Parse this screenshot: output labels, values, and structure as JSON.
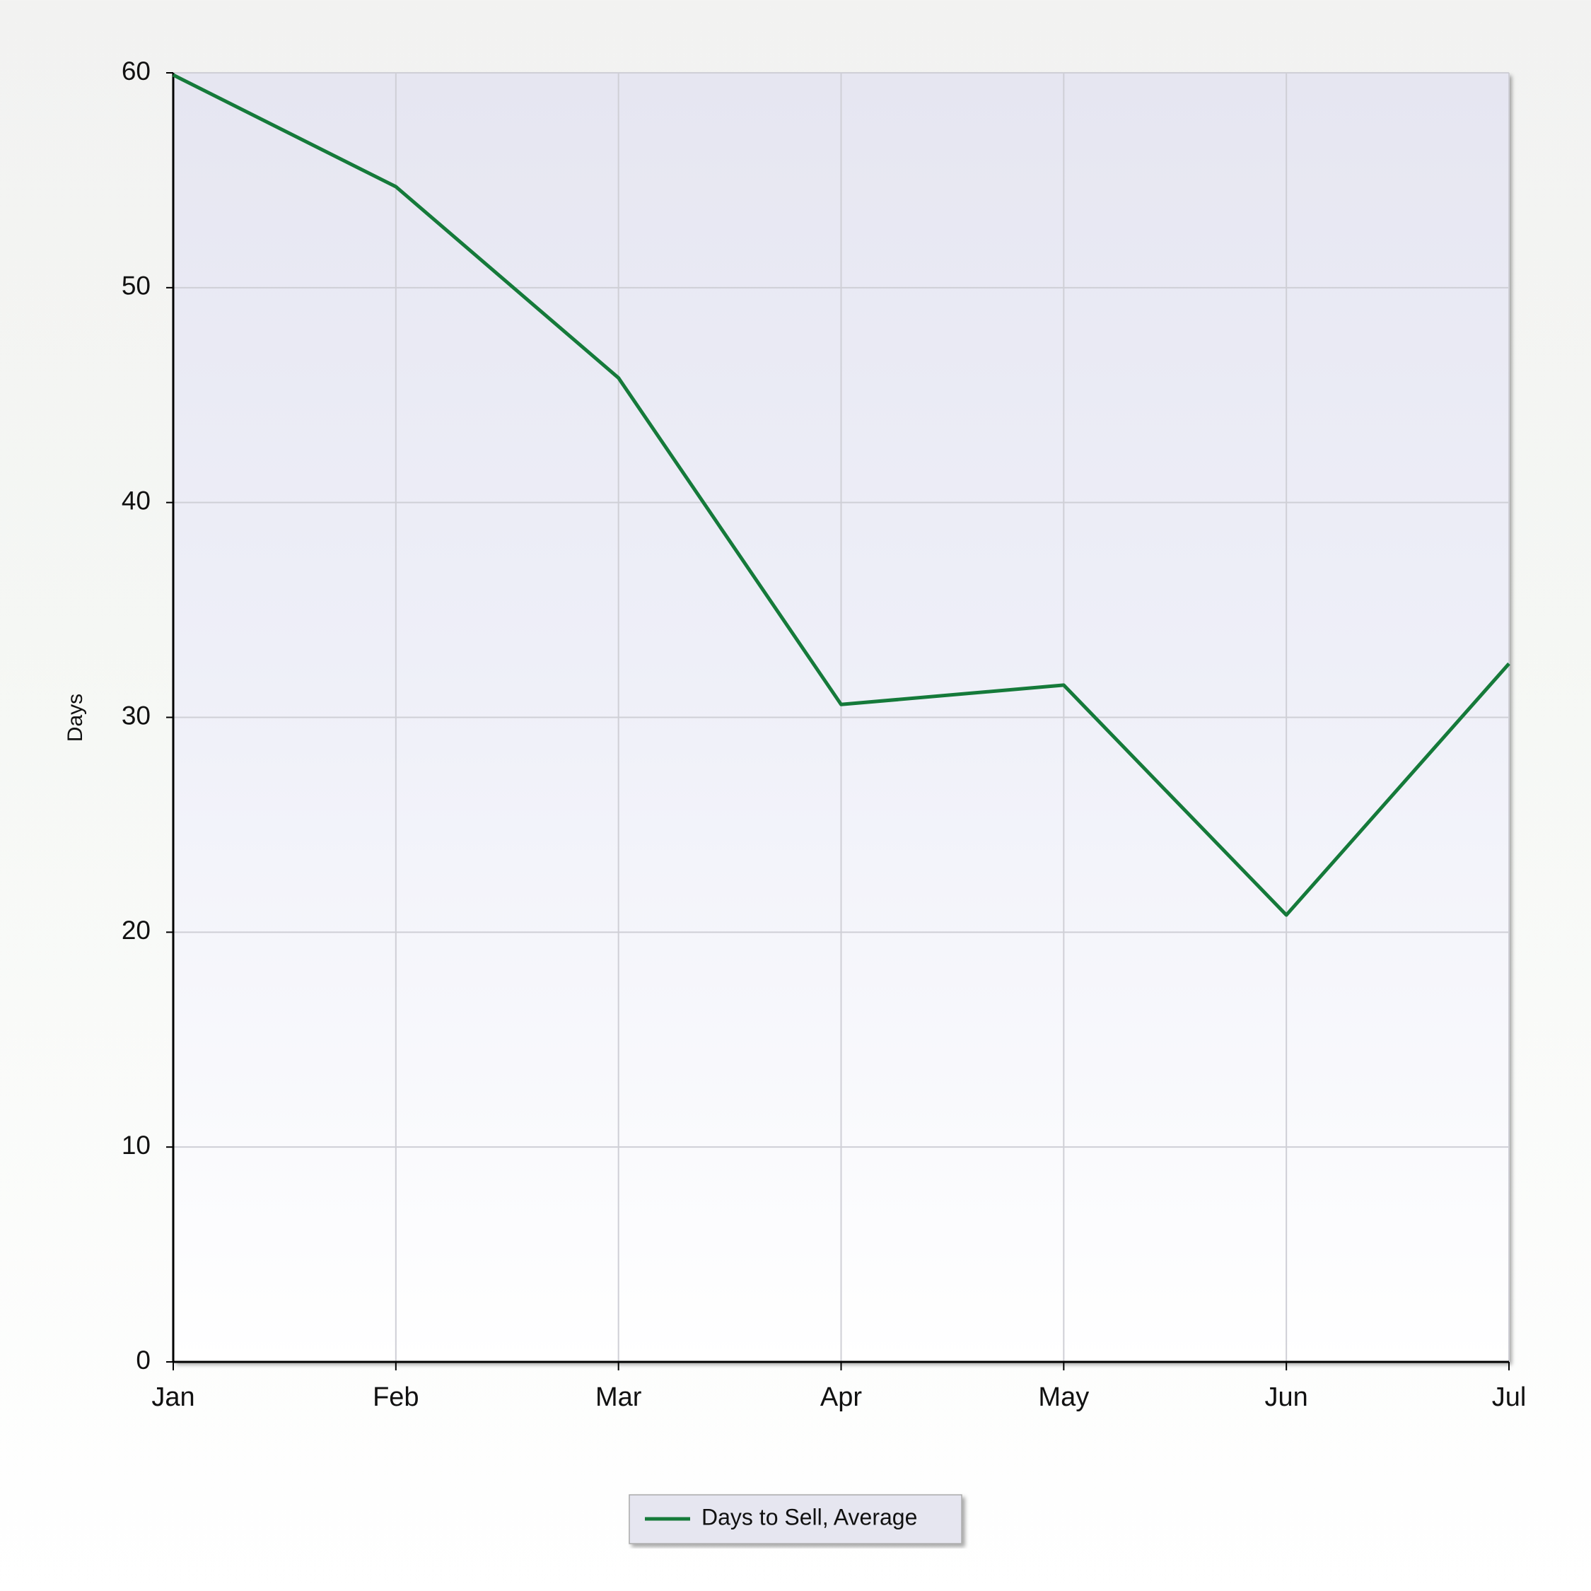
{
  "chart_data": {
    "type": "line",
    "y_label": "Days",
    "categories": [
      "Jan",
      "Feb",
      "Mar",
      "Apr",
      "May",
      "Jun",
      "Jul"
    ],
    "series": [
      {
        "name": "Days to Sell, Average",
        "color": "#157a3a",
        "values": [
          59.9,
          54.7,
          45.8,
          30.6,
          31.5,
          20.8,
          32.5
        ]
      }
    ],
    "ylim": [
      0,
      60
    ],
    "yticks": [
      0,
      10,
      20,
      30,
      40,
      50,
      60
    ],
    "grid": true,
    "legend": "bottom"
  }
}
